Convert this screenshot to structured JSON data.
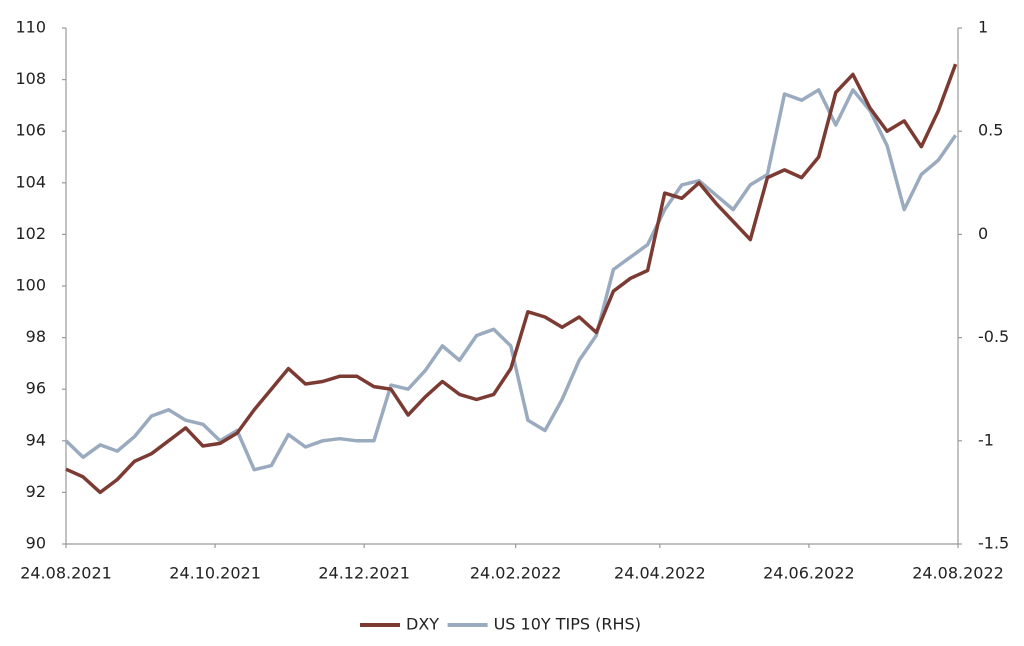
{
  "chart_data": {
    "type": "line",
    "x": [
      "24.08.2021",
      "31.08.2021",
      "07.09.2021",
      "14.09.2021",
      "21.09.2021",
      "28.09.2021",
      "05.10.2021",
      "12.10.2021",
      "19.10.2021",
      "26.10.2021",
      "02.11.2021",
      "09.11.2021",
      "16.11.2021",
      "23.11.2021",
      "30.11.2021",
      "07.12.2021",
      "14.12.2021",
      "21.12.2021",
      "28.12.2021",
      "04.01.2022",
      "11.01.2022",
      "18.01.2022",
      "25.01.2022",
      "01.02.2022",
      "08.02.2022",
      "15.02.2022",
      "22.02.2022",
      "01.03.2022",
      "08.03.2022",
      "15.03.2022",
      "22.03.2022",
      "29.03.2022",
      "05.04.2022",
      "12.04.2022",
      "19.04.2022",
      "26.04.2022",
      "03.05.2022",
      "10.05.2022",
      "17.05.2022",
      "24.05.2022",
      "31.05.2022",
      "07.06.2022",
      "14.06.2022",
      "21.06.2022",
      "28.06.2022",
      "05.07.2022",
      "12.07.2022",
      "19.07.2022",
      "26.07.2022",
      "02.08.2022",
      "09.08.2022",
      "16.08.2022",
      "23.08.2022"
    ],
    "series": [
      {
        "name": "DXY",
        "color": "#7b3b33",
        "values": [
          92.9,
          92.6,
          92.0,
          92.5,
          93.2,
          93.5,
          94.0,
          94.5,
          93.8,
          93.9,
          94.3,
          95.2,
          96.0,
          96.8,
          96.2,
          96.3,
          96.5,
          96.5,
          96.1,
          96.0,
          95.0,
          95.7,
          96.3,
          95.8,
          95.6,
          95.8,
          96.8,
          99.0,
          98.8,
          98.4,
          98.8,
          98.2,
          99.8,
          100.3,
          100.6,
          103.6,
          103.4,
          104.0,
          103.2,
          102.5,
          101.8,
          104.2,
          104.5,
          104.2,
          105.0,
          107.5,
          108.2,
          106.9,
          106.0,
          106.4,
          105.4,
          106.8,
          108.6
        ]
      },
      {
        "name": "US 10Y TIPS (RHS)",
        "color": "#9aaabf",
        "axis": "y2",
        "values": [
          -1.0,
          -1.08,
          -1.02,
          -1.05,
          -0.98,
          -0.88,
          -0.85,
          -0.9,
          -0.92,
          -1.0,
          -0.95,
          -1.14,
          -1.12,
          -0.97,
          -1.03,
          -1.0,
          -0.99,
          -1.0,
          -1.0,
          -0.73,
          -0.75,
          -0.66,
          -0.54,
          -0.61,
          -0.49,
          -0.46,
          -0.54,
          -0.9,
          -0.95,
          -0.8,
          -0.61,
          -0.49,
          -0.17,
          -0.11,
          -0.05,
          0.12,
          0.24,
          0.26,
          0.19,
          0.12,
          0.24,
          0.29,
          0.68,
          0.65,
          0.7,
          0.53,
          0.7,
          0.6,
          0.43,
          0.12,
          0.29,
          0.36,
          0.48
        ]
      }
    ],
    "xticks": [
      "24.08.2021",
      "24.10.2021",
      "24.12.2021",
      "24.02.2022",
      "24.04.2022",
      "24.06.2022",
      "24.08.2022"
    ],
    "ylim": [
      90,
      110
    ],
    "yticks": [
      90,
      92,
      94,
      96,
      98,
      100,
      102,
      104,
      106,
      108,
      110
    ],
    "y2lim": [
      -1.5,
      1
    ],
    "y2ticks": [
      -1.5,
      -1,
      -0.5,
      0,
      0.5,
      1
    ],
    "legend": "bottom",
    "grid": false
  }
}
